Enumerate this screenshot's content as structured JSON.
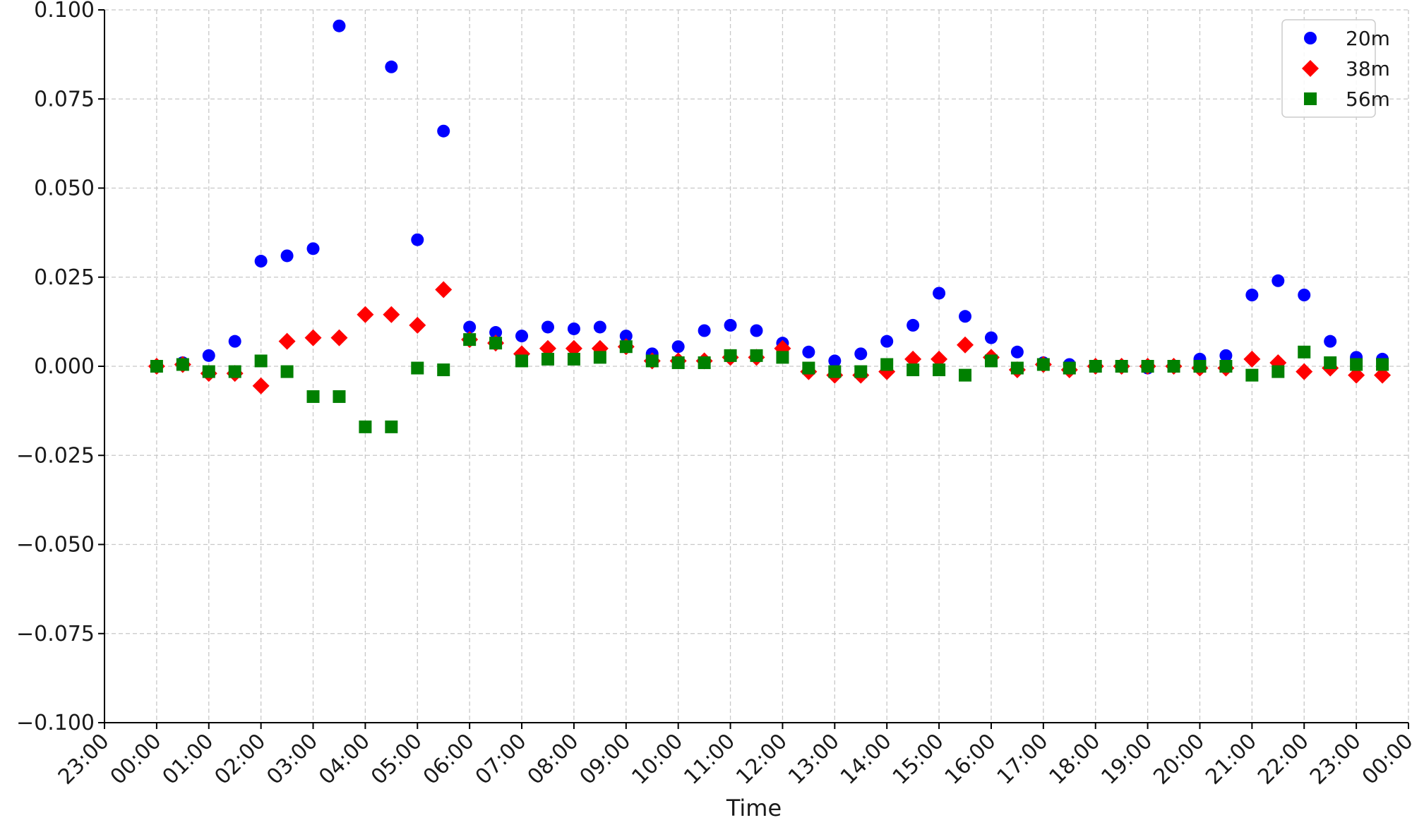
{
  "chart_data": {
    "type": "scatter",
    "title": "",
    "xlabel": "Time",
    "ylabel": "",
    "x_ticks": [
      "23:00",
      "00:00",
      "01:00",
      "02:00",
      "03:00",
      "04:00",
      "05:00",
      "06:00",
      "07:00",
      "08:00",
      "09:00",
      "10:00",
      "11:00",
      "12:00",
      "13:00",
      "14:00",
      "15:00",
      "16:00",
      "17:00",
      "18:00",
      "19:00",
      "20:00",
      "21:00",
      "22:00",
      "23:00",
      "00:00"
    ],
    "xlim_hours": [
      -1,
      24
    ],
    "ylim": [
      -0.1,
      0.1
    ],
    "y_ticks": [
      -0.1,
      -0.075,
      -0.05,
      -0.025,
      0.0,
      0.025,
      0.05,
      0.075,
      0.1
    ],
    "y_tick_labels": [
      "−0.100",
      "−0.075",
      "−0.050",
      "−0.025",
      "0.000",
      "0.025",
      "0.050",
      "0.075",
      "0.100"
    ],
    "grid": true,
    "legend_position": "top-right",
    "x_hours": [
      0,
      0.5,
      1,
      1.5,
      2,
      2.5,
      3,
      3.5,
      4,
      4.5,
      5,
      5.5,
      6,
      6.5,
      7,
      7.5,
      8,
      8.5,
      9,
      9.5,
      10,
      10.5,
      11,
      11.5,
      12,
      12.5,
      13,
      13.5,
      14,
      14.5,
      15,
      15.5,
      16,
      16.5,
      17,
      17.5,
      18,
      18.5,
      19,
      19.5,
      20,
      20.5,
      21,
      21.5,
      22,
      22.5,
      23,
      23.5
    ],
    "series": [
      {
        "name": "20m",
        "color": "#0000ff",
        "marker": "circle",
        "values": [
          0.0,
          0.001,
          0.003,
          0.007,
          0.0295,
          0.031,
          0.033,
          0.0955,
          null,
          0.084,
          0.0355,
          0.066,
          0.011,
          0.0095,
          0.0085,
          0.011,
          0.0105,
          0.011,
          0.0085,
          0.0035,
          0.0055,
          0.01,
          0.0115,
          0.01,
          0.0065,
          0.004,
          0.0015,
          0.0035,
          0.007,
          0.0115,
          0.0205,
          0.014,
          0.008,
          0.004,
          0.001,
          0.0005,
          0.0,
          0.0,
          -0.0005,
          0.0,
          0.002,
          0.003,
          0.02,
          0.024,
          0.02,
          0.007,
          0.0025,
          0.002
        ]
      },
      {
        "name": "38m",
        "color": "#ff0000",
        "marker": "diamond",
        "values": [
          0.0,
          0.0005,
          -0.002,
          -0.002,
          -0.0055,
          0.007,
          0.008,
          0.008,
          0.0145,
          0.0145,
          0.0115,
          0.0215,
          0.0075,
          0.0065,
          0.0035,
          0.005,
          0.005,
          0.005,
          0.0055,
          0.0015,
          0.0015,
          0.0015,
          0.0025,
          0.0025,
          0.005,
          -0.0015,
          -0.0025,
          -0.0025,
          -0.0015,
          0.002,
          0.002,
          0.006,
          0.0025,
          -0.001,
          0.0005,
          -0.001,
          0.0,
          0.0,
          0.0,
          0.0,
          -0.0005,
          -0.0005,
          0.002,
          0.001,
          -0.0015,
          -0.0005,
          -0.0025,
          -0.0025
        ]
      },
      {
        "name": "56m",
        "color": "#008000",
        "marker": "square",
        "values": [
          0.0,
          0.0005,
          -0.0015,
          -0.0015,
          0.0015,
          -0.0015,
          -0.0085,
          -0.0085,
          -0.017,
          -0.017,
          -0.0005,
          -0.001,
          0.0075,
          0.0065,
          0.0015,
          0.002,
          0.002,
          0.0025,
          0.0055,
          0.0015,
          0.001,
          0.001,
          0.003,
          0.003,
          0.0025,
          -0.0005,
          -0.0015,
          -0.0015,
          0.0005,
          -0.001,
          -0.001,
          -0.0025,
          0.0015,
          -0.0005,
          0.0005,
          -0.0005,
          0.0,
          0.0,
          0.0,
          0.0,
          0.0,
          0.0,
          -0.0025,
          -0.0015,
          0.004,
          0.001,
          0.0005,
          0.0005
        ]
      }
    ]
  }
}
